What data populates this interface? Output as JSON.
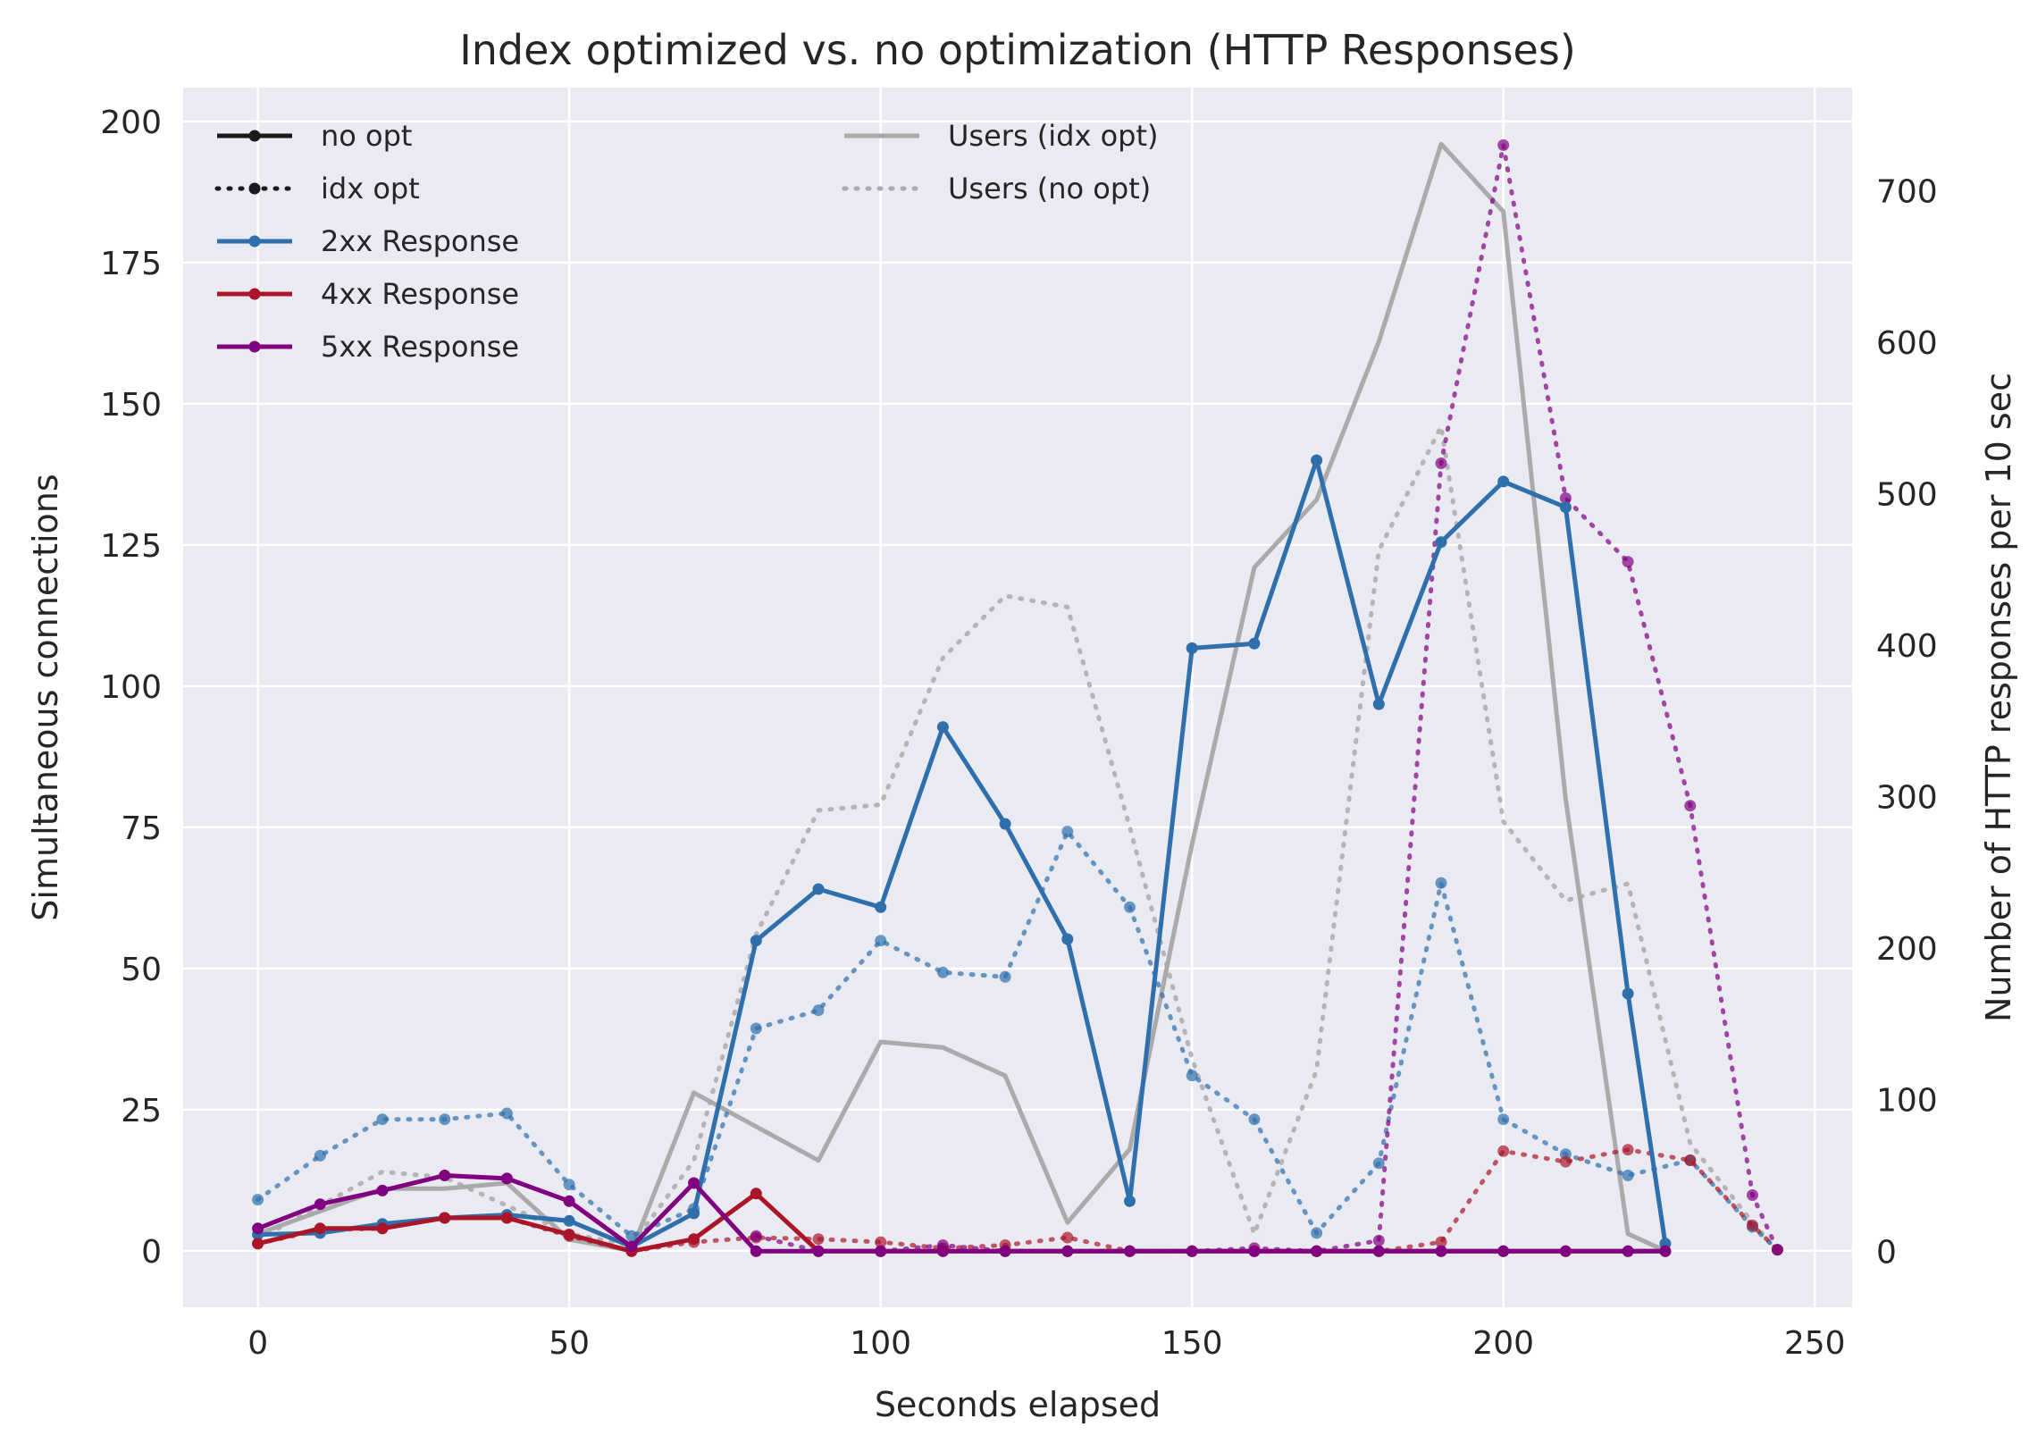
{
  "chart_data": {
    "type": "line",
    "title": "Index optimized vs. no optimization (HTTP Responses)",
    "xlabel": "Seconds elapsed",
    "ylabel": "Simultaneous connections",
    "y2label": "Number of HTTP responses per 10 sec",
    "xlim": [
      -12,
      256
    ],
    "ylim": [
      -10,
      206
    ],
    "y2lim": [
      -37,
      768
    ],
    "xticks": [
      0,
      50,
      100,
      150,
      200,
      250
    ],
    "yticks": [
      0,
      25,
      50,
      75,
      100,
      125,
      150,
      175,
      200
    ],
    "y2ticks": [
      0,
      100,
      200,
      300,
      400,
      500,
      600,
      700
    ],
    "grid": true,
    "legend_left": [
      {
        "label": "no opt",
        "style": "solid",
        "color": "#1a1a1a"
      },
      {
        "label": "idx opt",
        "style": "dotted",
        "color": "#1a1a1a"
      },
      {
        "label": "2xx Response",
        "style": "solid",
        "color": "#2e6fac"
      },
      {
        "label": "4xx Response",
        "style": "solid",
        "color": "#aa1528"
      },
      {
        "label": "5xx Response",
        "style": "solid",
        "color": "#800080"
      }
    ],
    "legend_right": [
      {
        "label": "Users (idx opt)",
        "style": "solid",
        "color": "#aaaaaa"
      },
      {
        "label": "Users (no opt)",
        "style": "dotted",
        "color": "#aaaaaa"
      }
    ],
    "series": [
      {
        "name": "Users (idx opt)",
        "axis": "left",
        "style": "solid",
        "color": "#aaaaaa",
        "markers": false,
        "x": [
          0,
          20,
          30,
          40,
          50,
          60,
          70,
          90,
          100,
          110,
          120,
          130,
          140,
          150,
          160,
          170,
          180,
          190,
          200,
          210,
          220,
          226
        ],
        "y": [
          3,
          11,
          11,
          12,
          2,
          0,
          28,
          16,
          37,
          36,
          31,
          5,
          18,
          72,
          121,
          133,
          161,
          196,
          184,
          80,
          3,
          0
        ]
      },
      {
        "name": "Users (no opt)",
        "axis": "left",
        "style": "dotted",
        "color": "#aaaaaa",
        "markers": false,
        "x": [
          0,
          10,
          20,
          30,
          40,
          50,
          60,
          70,
          80,
          90,
          100,
          110,
          120,
          130,
          140,
          150,
          160,
          170,
          180,
          190,
          200,
          210,
          220,
          230,
          240,
          244
        ],
        "y": [
          2,
          8,
          14,
          13,
          8,
          3,
          1,
          16,
          56,
          78,
          79,
          105,
          116,
          114,
          75,
          34,
          3,
          32,
          124,
          146,
          76,
          62,
          65,
          19,
          5,
          0
        ]
      },
      {
        "name": "2xx Response (idx opt)",
        "axis": "right",
        "style": "dotted",
        "color": "#2e6fac",
        "markers": true,
        "x": [
          0,
          10,
          20,
          30,
          40,
          50,
          60,
          70,
          80,
          90,
          100,
          110,
          120,
          130,
          140,
          150,
          160,
          170,
          180,
          190,
          200,
          210,
          220,
          230,
          240,
          244
        ],
        "y": [
          34,
          63,
          87,
          87,
          91,
          44,
          10,
          28,
          147,
          159,
          205,
          184,
          181,
          277,
          227,
          116,
          87,
          12,
          58,
          243,
          87,
          64,
          50,
          60,
          16,
          1
        ]
      },
      {
        "name": "4xx Response (idx opt)",
        "axis": "right",
        "style": "dotted",
        "color": "#aa1528",
        "markers": true,
        "x": [
          0,
          10,
          20,
          30,
          40,
          50,
          60,
          70,
          80,
          90,
          100,
          110,
          120,
          130,
          140,
          150,
          160,
          170,
          180,
          190,
          200,
          210,
          220,
          230,
          240,
          244
        ],
        "y": [
          5,
          14,
          15,
          22,
          22,
          10,
          0,
          6,
          9,
          8,
          6,
          2,
          4,
          9,
          0,
          0,
          0,
          0,
          0,
          6,
          66,
          59,
          67,
          60,
          17,
          1
        ]
      },
      {
        "name": "5xx Response (idx opt)",
        "axis": "right",
        "style": "dotted",
        "color": "#800080",
        "markers": true,
        "x": [
          80,
          90,
          100,
          110,
          120,
          130,
          140,
          150,
          160,
          170,
          180,
          190,
          200,
          210,
          220,
          230,
          240,
          244
        ],
        "y": [
          10,
          0,
          0,
          4,
          0,
          0,
          0,
          0,
          2,
          0,
          7,
          520,
          730,
          497,
          455,
          294,
          37,
          1
        ]
      },
      {
        "name": "2xx Response (no opt)",
        "axis": "right",
        "style": "solid",
        "color": "#2e6fac",
        "markers": true,
        "x": [
          0,
          10,
          20,
          30,
          40,
          50,
          60,
          70,
          80,
          90,
          100,
          110,
          120,
          130,
          140,
          150,
          160,
          170,
          180,
          190,
          200,
          210,
          220,
          226
        ],
        "y": [
          11,
          12,
          18,
          22,
          24,
          20,
          3,
          25,
          205,
          239,
          227,
          346,
          282,
          206,
          33,
          398,
          401,
          522,
          361,
          468,
          508,
          491,
          170,
          5
        ]
      },
      {
        "name": "4xx Response (no opt)",
        "axis": "right",
        "style": "solid",
        "color": "#aa1528",
        "markers": true,
        "x": [
          0,
          10,
          20,
          30,
          40,
          50,
          60,
          70,
          80,
          90,
          100,
          110,
          120,
          130,
          140,
          150,
          160,
          170,
          180,
          190,
          200,
          210,
          220,
          226
        ],
        "y": [
          5,
          15,
          15,
          22,
          22,
          11,
          0,
          8,
          38,
          0,
          0,
          0,
          0,
          0,
          0,
          0,
          0,
          0,
          0,
          0,
          0,
          0,
          0,
          0
        ]
      },
      {
        "name": "5xx Response (no opt)",
        "axis": "right",
        "style": "solid",
        "color": "#800080",
        "markers": true,
        "x": [
          0,
          10,
          20,
          30,
          40,
          50,
          60,
          70,
          80,
          90,
          100,
          110,
          120,
          130,
          140,
          150,
          160,
          170,
          180,
          190,
          200,
          210,
          220,
          226
        ],
        "y": [
          15,
          31,
          40,
          50,
          48,
          33,
          3,
          45,
          0,
          0,
          0,
          0,
          0,
          0,
          0,
          0,
          0,
          0,
          0,
          0,
          0,
          0,
          0,
          0
        ]
      }
    ]
  }
}
